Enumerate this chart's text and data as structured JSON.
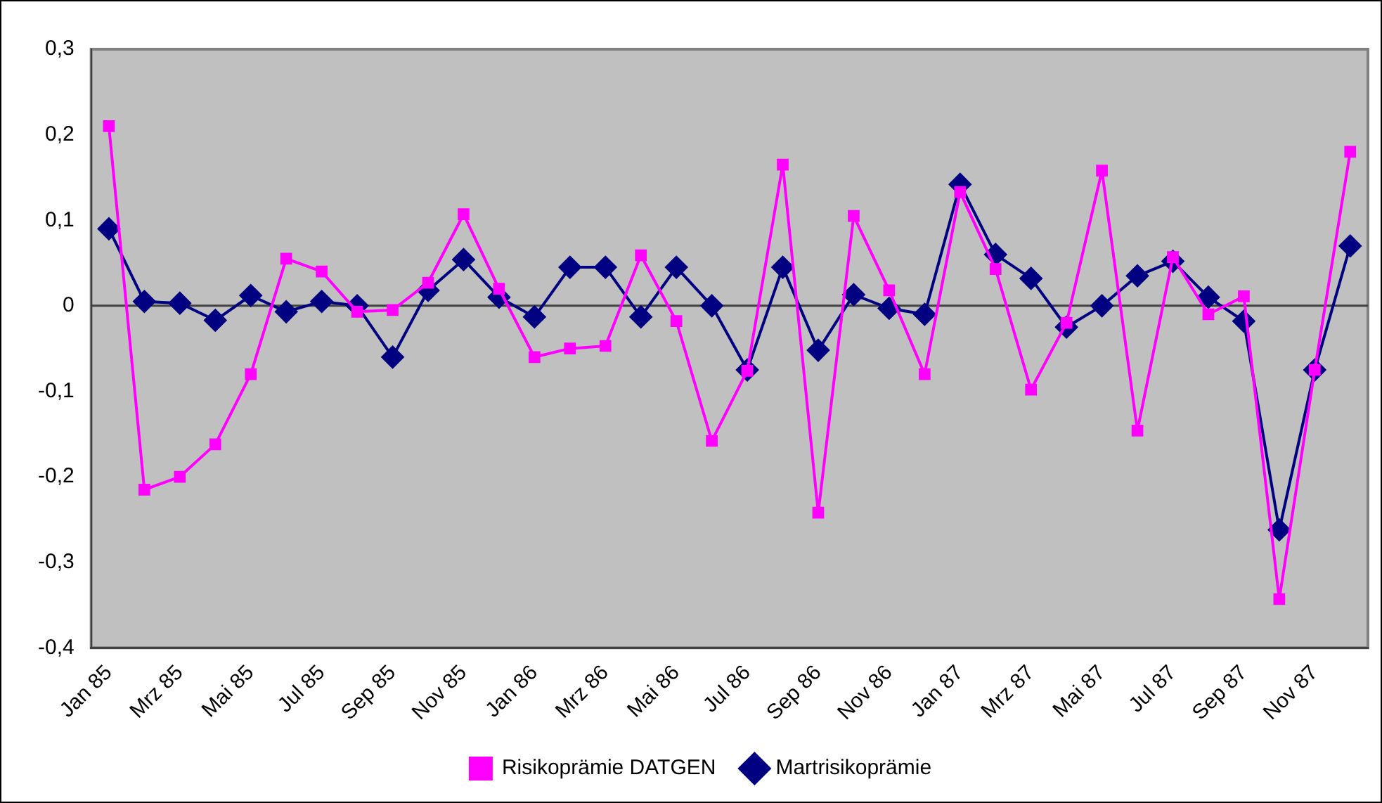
{
  "chart_data": {
    "type": "line",
    "categories": [
      "Jan 85",
      null,
      "Mrz 85",
      null,
      "Mai 85",
      null,
      "Jul 85",
      null,
      "Sep 85",
      null,
      "Nov 85",
      null,
      "Jan 86",
      null,
      "Mrz 86",
      null,
      "Mai 86",
      null,
      "Jul 86",
      null,
      "Sep 86",
      null,
      "Nov 86",
      null,
      "Jan 87",
      null,
      "Mrz 87",
      null,
      "Mai 87",
      null,
      "Jul 87",
      null,
      "Sep 87",
      null,
      "Nov 87",
      null
    ],
    "series": [
      {
        "name": "Martrisikoprämie",
        "color": "#000080",
        "marker": "diamond",
        "values": [
          0.09,
          0.005,
          0.003,
          -0.017,
          0.012,
          -0.007,
          0.005,
          0,
          -0.06,
          0.018,
          0.054,
          0.01,
          -0.013,
          0.045,
          0.045,
          -0.013,
          0.045,
          0,
          -0.075,
          0.045,
          -0.052,
          0.013,
          -0.003,
          -0.01,
          0.142,
          0.06,
          0.032,
          -0.025,
          0,
          0.035,
          0.052,
          0.01,
          -0.018,
          -0.262,
          -0.075,
          0.07
        ]
      },
      {
        "name": "Risikoprämie DATGEN",
        "color": "#ff00ff",
        "marker": "square",
        "values": [
          0.21,
          -0.215,
          -0.2,
          -0.162,
          -0.08,
          0.055,
          0.04,
          -0.007,
          -0.005,
          0.027,
          0.107,
          0.02,
          -0.06,
          -0.05,
          -0.047,
          0.059,
          -0.018,
          -0.158,
          -0.076,
          0.165,
          -0.242,
          0.105,
          0.018,
          -0.08,
          0.133,
          0.043,
          -0.098,
          -0.02,
          0.158,
          -0.146,
          0.057,
          -0.01,
          0.011,
          -0.343,
          -0.075,
          0.18
        ]
      }
    ],
    "ylim": [
      -0.4,
      0.3
    ],
    "yticks": [
      {
        "value": -0.4,
        "label": "-0,4"
      },
      {
        "value": -0.3,
        "label": "-0,3"
      },
      {
        "value": -0.2,
        "label": "-0,2"
      },
      {
        "value": -0.1,
        "label": "-0,1"
      },
      {
        "value": 0,
        "label": "0"
      },
      {
        "value": 0.1,
        "label": "0,1"
      },
      {
        "value": 0.2,
        "label": "0,2"
      },
      {
        "value": 0.3,
        "label": "0,3"
      }
    ],
    "ref_lines": [
      {
        "axis": "y",
        "value": 0,
        "color": "#404040",
        "line_style": "solid"
      }
    ],
    "grid": false,
    "legend": "bottom",
    "line_style": "solid"
  }
}
